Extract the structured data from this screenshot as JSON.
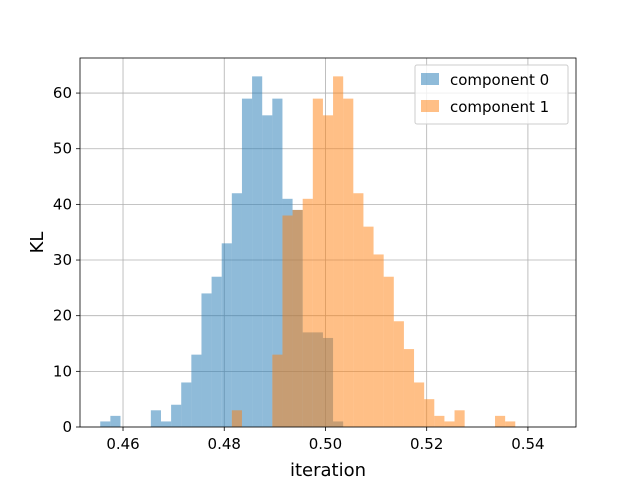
{
  "chart_data": {
    "type": "bar",
    "title": "",
    "xlabel": "iteration",
    "ylabel": "KL",
    "xlim": [
      0.4515,
      0.5495
    ],
    "ylim": [
      0,
      66.3
    ],
    "xticks": [
      0.46,
      0.48,
      0.5,
      0.52,
      0.54
    ],
    "xtick_labels": [
      "0.46",
      "0.48",
      "0.50",
      "0.52",
      "0.54"
    ],
    "yticks": [
      0,
      10,
      20,
      30,
      40,
      50,
      60
    ],
    "ytick_labels": [
      "0",
      "10",
      "20",
      "30",
      "40",
      "50",
      "60"
    ],
    "grid": true,
    "legend_position": "top-right",
    "series": [
      {
        "name": "component 0",
        "color": "#1f77b4",
        "opacity": 0.5,
        "bin_start": 0.4555,
        "bin_width": 0.002,
        "counts": [
          1,
          2,
          0,
          0,
          0,
          3,
          1,
          4,
          8,
          13,
          24,
          27,
          33,
          42,
          59,
          63,
          56,
          59,
          41,
          39,
          17,
          17,
          16,
          1,
          0,
          0
        ]
      },
      {
        "name": "component 1",
        "color": "#ff7f0e",
        "opacity": 0.5,
        "bin_start": 0.4555,
        "bin_width": 0.002,
        "counts": [
          0,
          0,
          0,
          0,
          0,
          0,
          0,
          0,
          0,
          0,
          0,
          0,
          0,
          3,
          0,
          0,
          0,
          13,
          38,
          39,
          41,
          59,
          56,
          63,
          59,
          42,
          36,
          31,
          27,
          19,
          14,
          8,
          5,
          2,
          1,
          3,
          0,
          0,
          0,
          2,
          1
        ]
      }
    ]
  }
}
